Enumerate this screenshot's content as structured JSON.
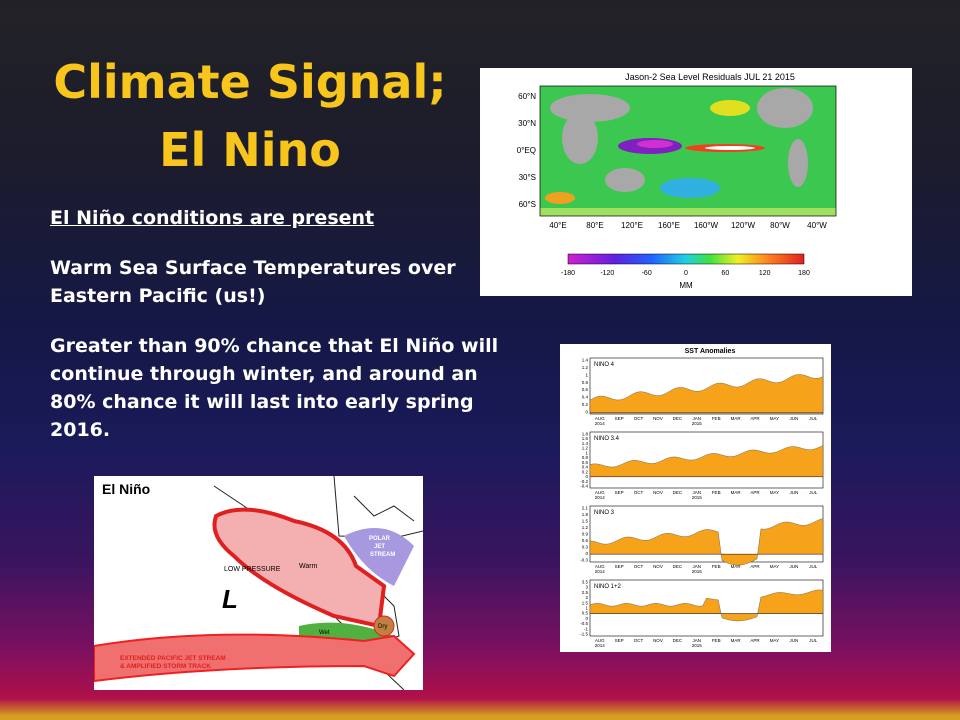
{
  "slide": {
    "title_lines": [
      "Climate Signal;",
      "El Nino"
    ],
    "bullets": [
      "El Niño conditions are present",
      "Warm Sea Surface Temperatures over Eastern Pacific (us!)",
      "Greater than 90% chance that El Niño will continue through winter, and around an 80% chance it will last into early spring 2016."
    ]
  },
  "figures": {
    "sea_level": {
      "title": "Jason-2 Sea Level Residuals JUL 21 2015",
      "lat_labels": [
        "60°N",
        "30°N",
        "0°EQ",
        "30°S",
        "60°S"
      ],
      "lon_labels": [
        "40°E",
        "80°E",
        "120°E",
        "160°E",
        "160°W",
        "120°W",
        "80°W",
        "40°W"
      ],
      "colorbar_ticks": [
        "-180",
        "-120",
        "-60",
        "0",
        "60",
        "120",
        "180"
      ],
      "colorbar_unit": "MM"
    },
    "sst": {
      "title": "SST Anomalies",
      "panels": [
        {
          "label": "NINO 4",
          "yticks": [
            "1.4",
            "1.2",
            "1",
            "0.8",
            "0.6",
            "0.4",
            "0.2",
            "0"
          ]
        },
        {
          "label": "NINO 3.4",
          "yticks": [
            "1.8",
            "1.6",
            "1.4",
            "1.2",
            "1",
            "0.8",
            "0.6",
            "0.4",
            "0.2",
            "0",
            "-0.2",
            "-0.4"
          ]
        },
        {
          "label": "NINO 3",
          "yticks": [
            "2.1",
            "1.8",
            "1.5",
            "1.2",
            "0.9",
            "0.6",
            "0.3",
            "0",
            "-0.3"
          ]
        },
        {
          "label": "NINO 1+2",
          "yticks": [
            "3.5",
            "3",
            "2.5",
            "2",
            "1.5",
            "1",
            "0.5",
            "0",
            "-0.5",
            "-1",
            "-1.5"
          ]
        }
      ],
      "months": [
        {
          "m": "AUG",
          "y": "2014"
        },
        {
          "m": "SEP"
        },
        {
          "m": "OCT"
        },
        {
          "m": "NOV"
        },
        {
          "m": "DEC"
        },
        {
          "m": "JAN",
          "y": "2015"
        },
        {
          "m": "FEB"
        },
        {
          "m": "MAR"
        },
        {
          "m": "APR"
        },
        {
          "m": "MAY"
        },
        {
          "m": "JUN"
        },
        {
          "m": "JUL"
        }
      ]
    },
    "el_nino_map": {
      "title": "El Niño",
      "low_pressure": "LOW PRESSURE",
      "low_symbol": "L",
      "warm": "Warm",
      "polar_jet": [
        "POLAR",
        "JET",
        "STREAM"
      ],
      "dry": "Dry",
      "wet": "Wet",
      "pacific_jet": [
        "EXTENDED PACIFIC JET STREAM",
        "& AMPLIFIED STORM TRACK"
      ]
    }
  }
}
